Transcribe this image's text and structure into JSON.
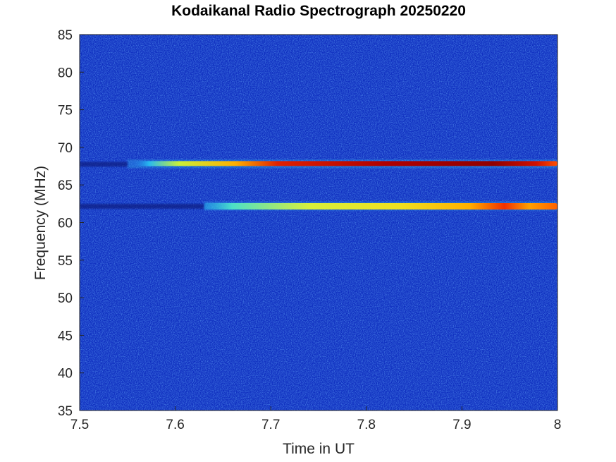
{
  "chart_data": {
    "type": "heatmap",
    "title": "Kodaikanal Radio Spectrograph  20250220",
    "xlabel": "Time in UT",
    "ylabel": "Frequency (MHz)",
    "xlim": [
      7.5,
      8
    ],
    "ylim": [
      35,
      85
    ],
    "xticks": [
      "7.5",
      "7.6",
      "7.7",
      "7.8",
      "7.9",
      "8"
    ],
    "yticks": [
      "85",
      "80",
      "75",
      "70",
      "65",
      "60",
      "55",
      "50",
      "45",
      "40",
      "35"
    ],
    "colormap": "jet",
    "background_intensity": "low (blue)",
    "bands": [
      {
        "frequency_mhz": 67.8,
        "time_start_ut": 7.55,
        "time_end_ut": 8.0,
        "peak_intensity": "high (dark red)",
        "peak_time_ut": 7.9
      },
      {
        "frequency_mhz": 62.2,
        "time_start_ut": 7.63,
        "time_end_ut": 8.0,
        "peak_intensity": "medium-high (red/orange)",
        "peak_time_ut": 7.92
      }
    ]
  }
}
